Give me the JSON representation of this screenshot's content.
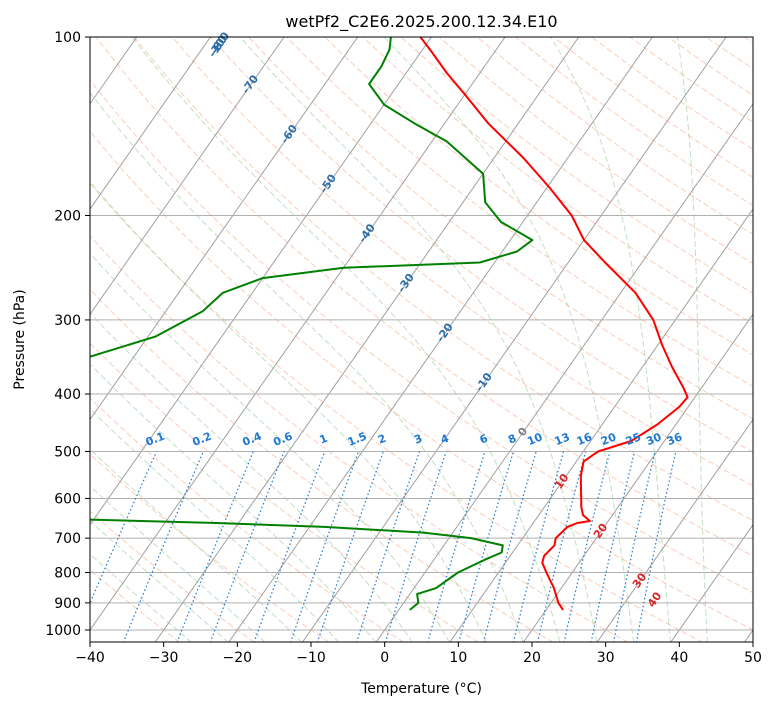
{
  "chart_data": {
    "type": "line",
    "subtype": "skew-t log-p diagram",
    "title": "wetPf2_C2E6.2025.200.12.34.E10",
    "xlabel": "Temperature (°C)",
    "ylabel": "Pressure (hPa)",
    "xlim": [
      -40,
      50
    ],
    "ylim": [
      1050,
      100
    ],
    "y_scale": "log",
    "x_ticks": [
      -40,
      -30,
      -20,
      -10,
      0,
      10,
      20,
      30,
      40,
      50
    ],
    "y_ticks": [
      100,
      200,
      300,
      400,
      500,
      600,
      700,
      800,
      900,
      1000
    ],
    "grid": "horizontal isobars + skewed isotherms",
    "series": [
      {
        "role": "temperature",
        "color": "#ff0000",
        "points": [
          {
            "p": 925,
            "t": 22.3
          },
          {
            "p": 900,
            "t": 21.0
          },
          {
            "p": 850,
            "t": 19.0
          },
          {
            "p": 800,
            "t": 16.5
          },
          {
            "p": 770,
            "t": 15.0
          },
          {
            "p": 750,
            "t": 14.6
          },
          {
            "p": 720,
            "t": 15.0
          },
          {
            "p": 700,
            "t": 14.5
          },
          {
            "p": 670,
            "t": 15.0
          },
          {
            "p": 660,
            "t": 16.0
          },
          {
            "p": 655,
            "t": 17.5
          },
          {
            "p": 640,
            "t": 16.0
          },
          {
            "p": 620,
            "t": 15.0
          },
          {
            "p": 550,
            "t": 12.0
          },
          {
            "p": 520,
            "t": 11.0
          },
          {
            "p": 500,
            "t": 12.0
          },
          {
            "p": 480,
            "t": 15.5
          },
          {
            "p": 450,
            "t": 17.5
          },
          {
            "p": 420,
            "t": 18.8
          },
          {
            "p": 405,
            "t": 19.0
          },
          {
            "p": 390,
            "t": 17.5
          },
          {
            "p": 360,
            "t": 14.0
          },
          {
            "p": 330,
            "t": 10.5
          },
          {
            "p": 300,
            "t": 7.0
          },
          {
            "p": 270,
            "t": 2.0
          },
          {
            "p": 240,
            "t": -5.0
          },
          {
            "p": 220,
            "t": -10.0
          },
          {
            "p": 200,
            "t": -14.0
          },
          {
            "p": 180,
            "t": -19.5
          },
          {
            "p": 160,
            "t": -26.0
          },
          {
            "p": 140,
            "t": -34.0
          },
          {
            "p": 125,
            "t": -40.0
          },
          {
            "p": 115,
            "t": -44.5
          },
          {
            "p": 105,
            "t": -49.0
          },
          {
            "p": 100,
            "t": -51.5
          }
        ]
      },
      {
        "role": "dewpoint",
        "color": "#008000",
        "points": [
          {
            "p": 925,
            "t": 1.5
          },
          {
            "p": 900,
            "t": 2.0
          },
          {
            "p": 870,
            "t": 1.0
          },
          {
            "p": 850,
            "t": 3.0
          },
          {
            "p": 800,
            "t": 4.5
          },
          {
            "p": 760,
            "t": 7.0
          },
          {
            "p": 740,
            "t": 8.5
          },
          {
            "p": 720,
            "t": 8.0
          },
          {
            "p": 700,
            "t": 3.0
          },
          {
            "p": 685,
            "t": -4.0
          },
          {
            "p": 670,
            "t": -18.0
          },
          {
            "p": 660,
            "t": -33.0
          },
          {
            "p": 650,
            "t": -53.0
          },
          {
            "p": 645,
            "t": -62.0
          },
          {
            "p": 350,
            "t": -67.0
          },
          {
            "p": 320,
            "t": -59.0
          },
          {
            "p": 290,
            "t": -55.0
          },
          {
            "p": 270,
            "t": -54.0
          },
          {
            "p": 255,
            "t": -50.0
          },
          {
            "p": 245,
            "t": -40.0
          },
          {
            "p": 240,
            "t": -22.0
          },
          {
            "p": 230,
            "t": -18.0
          },
          {
            "p": 220,
            "t": -17.0
          },
          {
            "p": 205,
            "t": -23.0
          },
          {
            "p": 190,
            "t": -27.0
          },
          {
            "p": 170,
            "t": -30.0
          },
          {
            "p": 150,
            "t": -38.0
          },
          {
            "p": 140,
            "t": -44.0
          },
          {
            "p": 130,
            "t": -50.0
          },
          {
            "p": 120,
            "t": -54.0
          },
          {
            "p": 112,
            "t": -54.0
          },
          {
            "p": 105,
            "t": -54.5
          },
          {
            "p": 100,
            "t": -55.5
          }
        ]
      }
    ],
    "moist_adiabat_labels": [
      "-100",
      "-90",
      "-80",
      "-70",
      "-60",
      "-50",
      "-40",
      "-30",
      "-20",
      "-10",
      "0",
      "10",
      "20",
      "30",
      "40"
    ],
    "mixing_ratio_labels": [
      "0.1",
      "0.2",
      "0.4",
      "0.6",
      "1",
      "1.5",
      "2",
      "3",
      "4",
      "6",
      "8",
      "10",
      "13",
      "16",
      "20",
      "25",
      "30",
      "36"
    ],
    "colors": {
      "isobar": "#b0b0b0",
      "isotherm": "#a0a0a0",
      "dry_adiabat": "#f4a582",
      "moist_adiabat": "#99cc99",
      "mixing_ratio": "#1e78d4",
      "isotherm_label_cold": "#2e6fa8",
      "isotherm_label_warm": "#d62728"
    }
  }
}
